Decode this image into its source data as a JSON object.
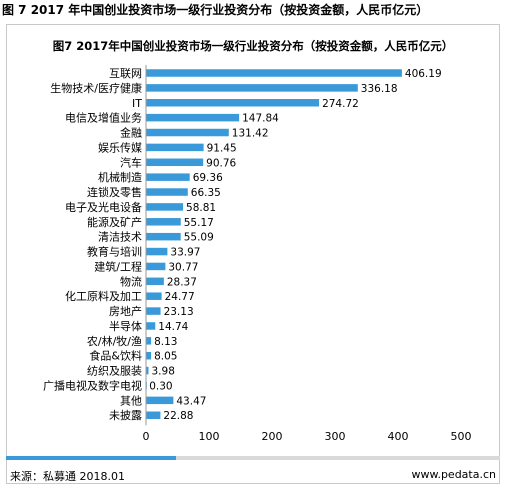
{
  "caption": "图 7 2017 年中国创业投资市场一级行业投资分布（按投资金额，人民币亿元）",
  "footer": {
    "source": "来源：私募通 2018.01",
    "url": "www.pedata.cn"
  },
  "colors": {
    "bar": "#3a9ad9",
    "axis": "#999999",
    "footer_bar": "#d9d9d9",
    "footer_accent": "#3a9ad9"
  },
  "chart_data": {
    "type": "bar",
    "orientation": "horizontal",
    "title": "图7 2017年中国创业投资市场一级行业投资分布（按投资金额，人民币亿元）",
    "xlabel": "",
    "ylabel": "",
    "xlim": [
      0,
      500
    ],
    "xticks": [
      0,
      100,
      200,
      300,
      400,
      500
    ],
    "grid": false,
    "categories": [
      "互联网",
      "生物技术/医疗健康",
      "IT",
      "电信及增值业务",
      "金融",
      "娱乐传媒",
      "汽车",
      "机械制造",
      "连锁及零售",
      "电子及光电设备",
      "能源及矿产",
      "清洁技术",
      "教育与培训",
      "建筑/工程",
      "物流",
      "化工原料及加工",
      "房地产",
      "半导体",
      "农/林/牧/渔",
      "食品&饮料",
      "纺织及服装",
      "广播电视及数字电视",
      "其他",
      "未披露"
    ],
    "values": [
      406.19,
      336.18,
      274.72,
      147.84,
      131.42,
      91.45,
      90.76,
      69.36,
      66.35,
      58.81,
      55.17,
      55.09,
      33.97,
      30.77,
      28.37,
      24.77,
      23.13,
      14.74,
      8.13,
      8.05,
      3.98,
      0.3,
      43.47,
      22.88
    ],
    "value_labels": [
      "406.19",
      "336.18",
      "274.72",
      "147.84",
      "131.42",
      "91.45",
      "90.76",
      "69.36",
      "66.35",
      "58.81",
      "55.17",
      "55.09",
      "33.97",
      "30.77",
      "28.37",
      "24.77",
      "23.13",
      "14.74",
      "8.13",
      "8.05",
      "3.98",
      "0.30",
      "43.47",
      "22.88"
    ]
  }
}
